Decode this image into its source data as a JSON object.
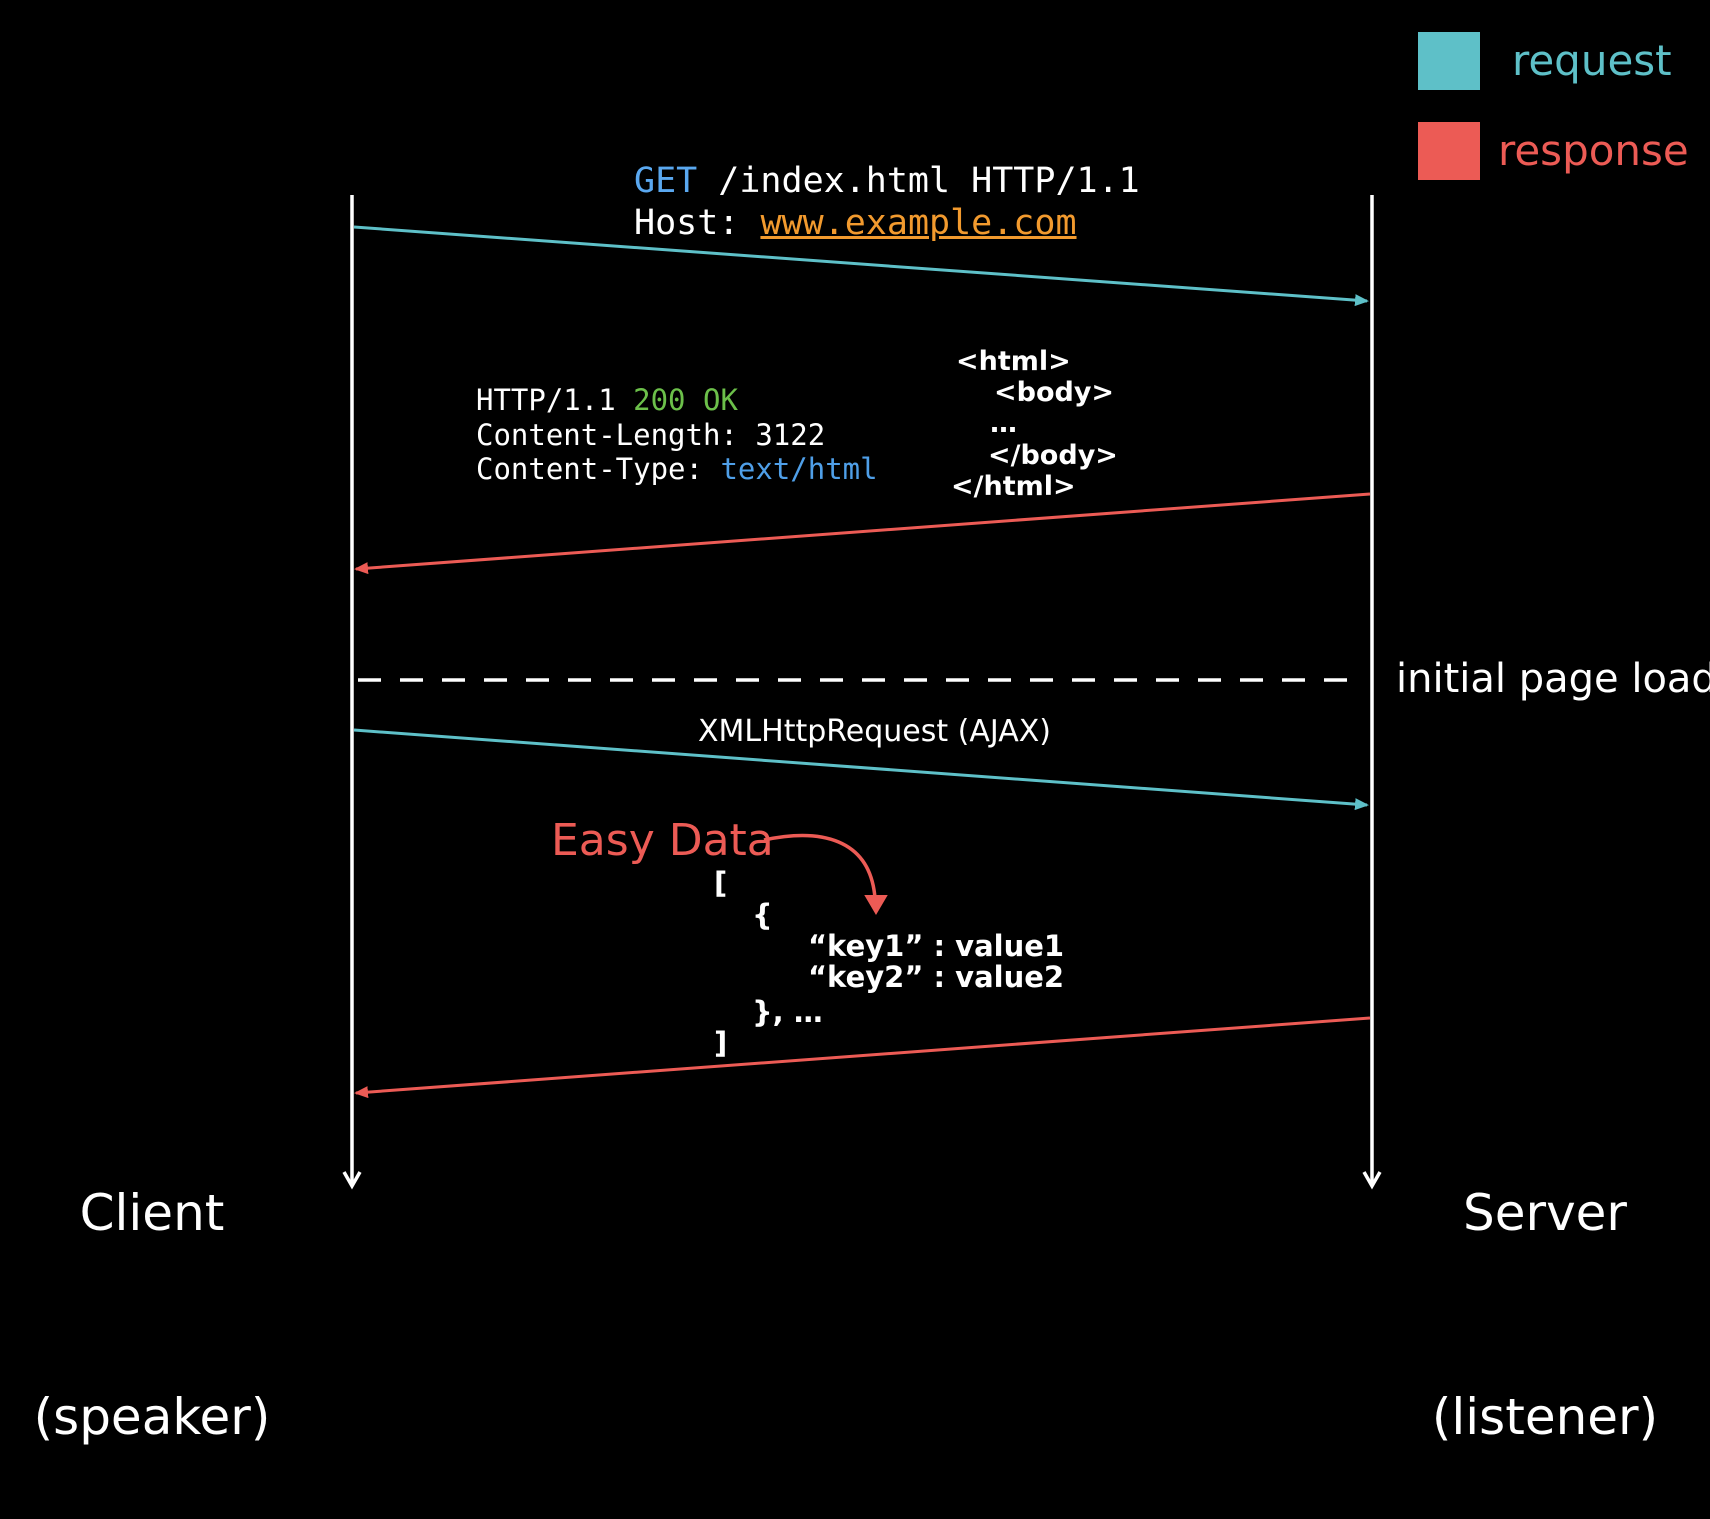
{
  "colors": {
    "background": "#000000",
    "request": "#5ec0c8",
    "response": "#ec5b55",
    "get_method": "#5aa8f0",
    "host_url": "#f29a2e",
    "status_ok": "#6cc04a",
    "content_type_value": "#4f9fe8",
    "lifeline": "#ffffff"
  },
  "legend": {
    "request_label": "request",
    "response_label": "response"
  },
  "request1": {
    "method": "GET",
    "path_protocol": " /index.html HTTP/1.1",
    "host_key": "Host: ",
    "host_value": "www.example.com"
  },
  "response1": {
    "protocol": "HTTP/1.1 ",
    "status": "200 OK",
    "content_length": "Content-Length: 3122",
    "content_type_key": "Content-Type: ",
    "content_type_value": "text/html",
    "html_lines": [
      "<html>",
      "<body>",
      "…",
      "</body>",
      "</html>"
    ]
  },
  "divider": {
    "label": "initial page load"
  },
  "request2": {
    "label": "XMLHttpRequest (AJAX)"
  },
  "response2": {
    "annotation": "Easy Data",
    "json_lines": [
      "[",
      "{",
      "“key1” : value1",
      "“key2” : value2",
      "}, …",
      "]"
    ]
  },
  "client": {
    "name": "Client",
    "role": "(speaker)"
  },
  "server": {
    "name": "Server",
    "role": "(listener)"
  }
}
